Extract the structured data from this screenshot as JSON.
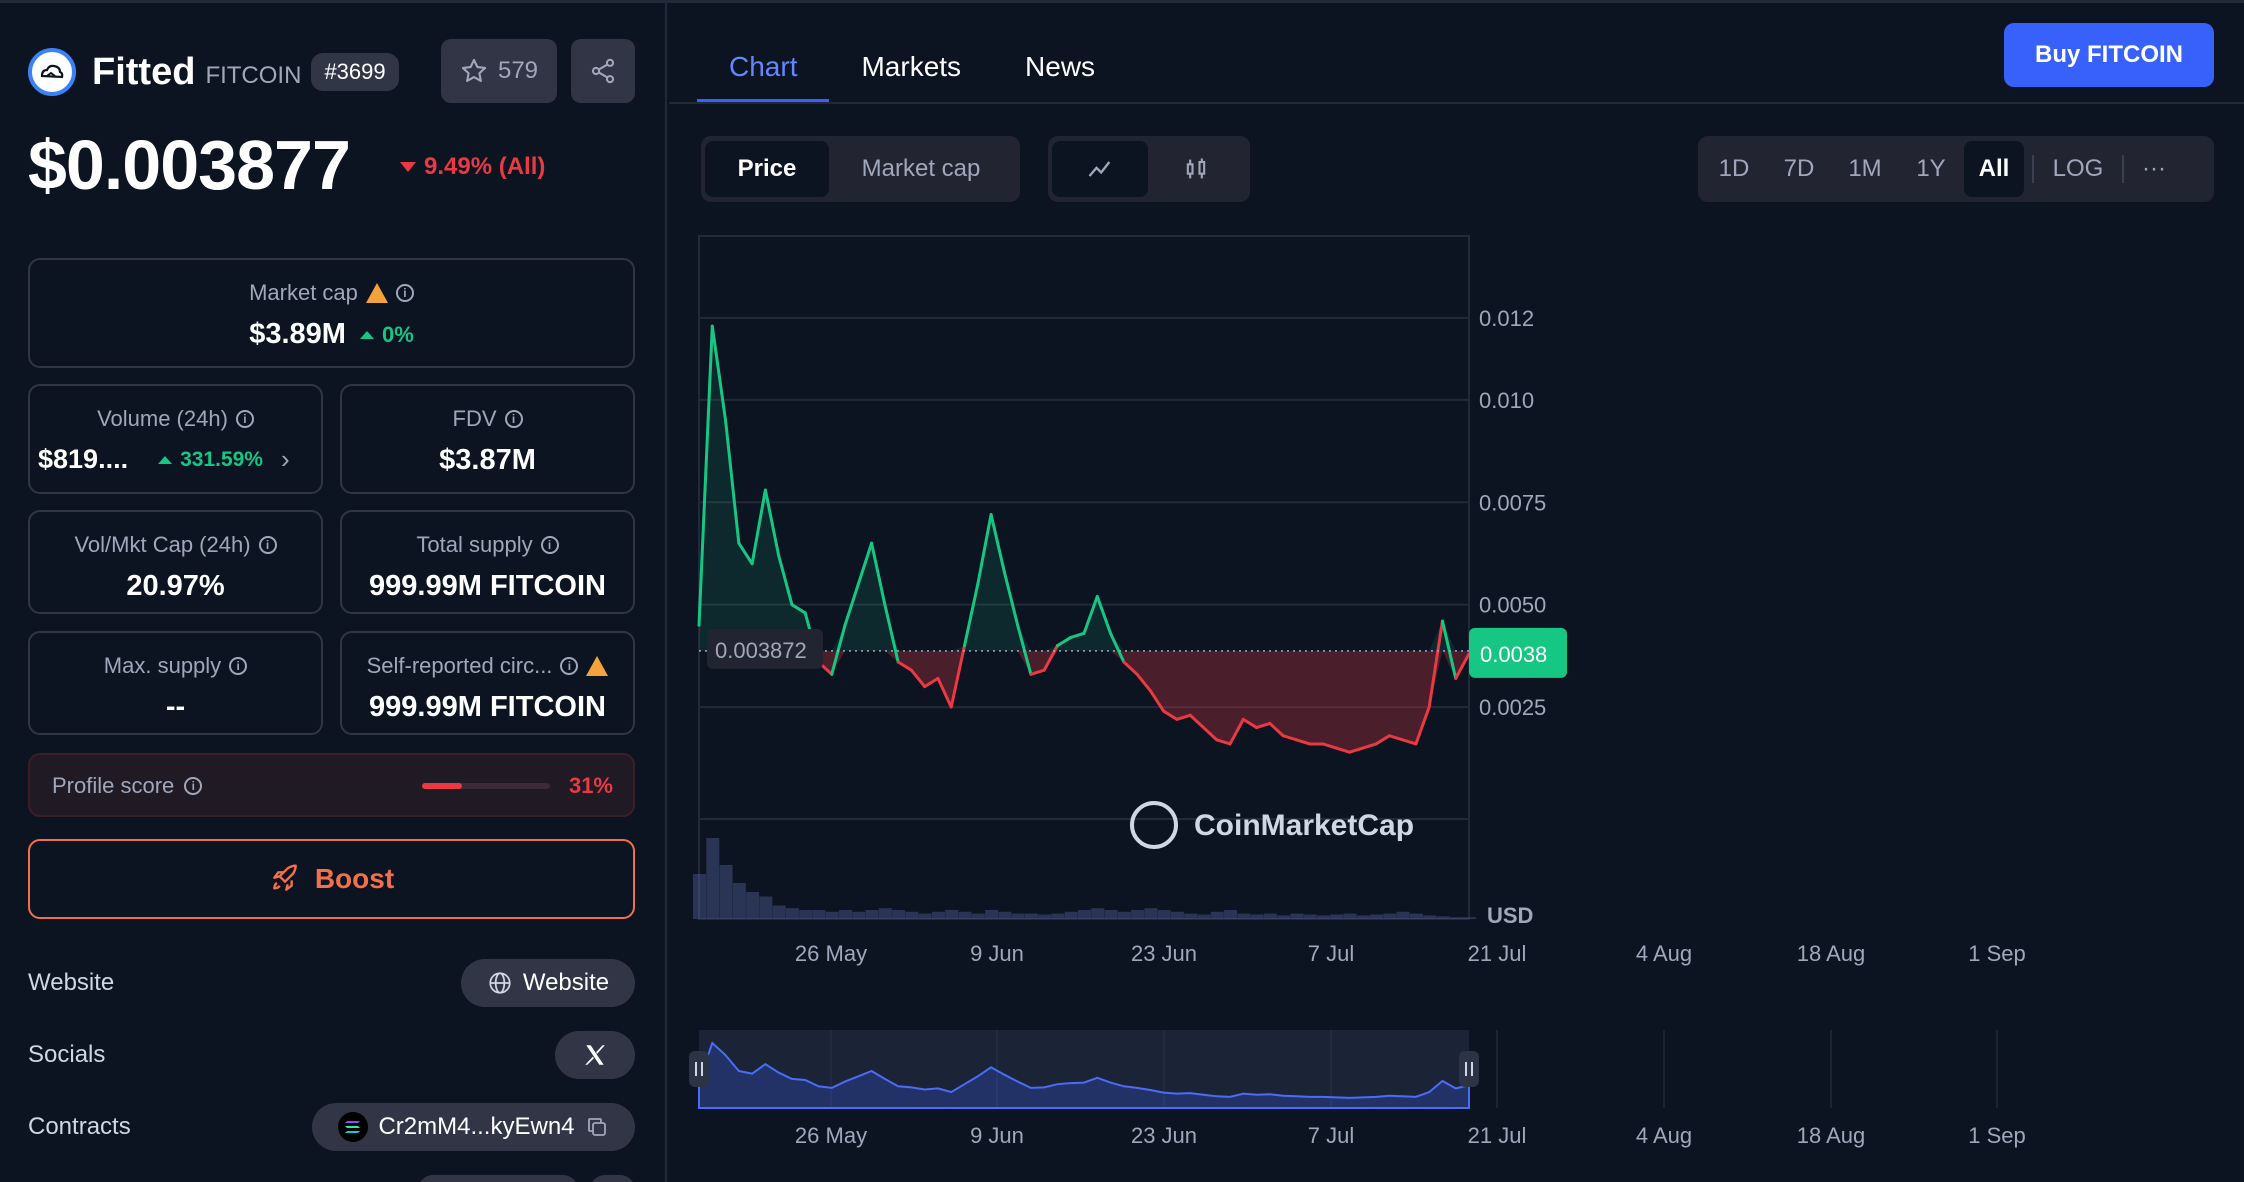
{
  "coin": {
    "name": "Fitted",
    "symbol": "FITCOIN",
    "rank": "#3699",
    "watchlist_count": "579"
  },
  "price": {
    "value": "$0.003877",
    "change": "9.49% (All)"
  },
  "stats": {
    "market_cap": {
      "label": "Market cap",
      "value": "$3.89M",
      "change": "0%"
    },
    "volume": {
      "label": "Volume (24h)",
      "value": "$819....",
      "change": "331.59%"
    },
    "fdv": {
      "label": "FDV",
      "value": "$3.87M"
    },
    "vol_mkt": {
      "label": "Vol/Mkt Cap (24h)",
      "value": "20.97%"
    },
    "total_supply": {
      "label": "Total supply",
      "value": "999.99M FITCOIN"
    },
    "max_supply": {
      "label": "Max. supply",
      "value": "--"
    },
    "circ_supply": {
      "label": "Self-reported circ...",
      "value": "999.99M FITCOIN"
    }
  },
  "profile_score": {
    "label": "Profile score",
    "value": "31%",
    "fraction": 0.31
  },
  "boost_label": "Boost",
  "links": {
    "website_label": "Website",
    "website_btn": "Website",
    "socials_label": "Socials",
    "contracts_label": "Contracts",
    "contract": "Cr2mM4...kyEwn4"
  },
  "tabs": [
    {
      "label": "Chart"
    },
    {
      "label": "Markets"
    },
    {
      "label": "News"
    }
  ],
  "buy_label": "Buy FITCOIN",
  "chart_controls": {
    "metric": [
      "Price",
      "Market cap"
    ],
    "ranges": [
      "1D",
      "7D",
      "1M",
      "1Y",
      "All"
    ],
    "log_label": "LOG",
    "more": "···"
  },
  "colors": {
    "up": "#16c784",
    "down": "#ea3943",
    "accent": "#3861fb",
    "bg": "#0d1421"
  },
  "watermark": "CoinMarketCap",
  "chart_data": {
    "type": "line",
    "y_unit": "USD",
    "baseline_label": "0.003872",
    "current_label": "0.0038",
    "baseline": 0.003872,
    "yticks": [
      "0.012",
      "0.010",
      "0.0075",
      "0.0050",
      "0.0025"
    ],
    "ytick_values": [
      0.012,
      0.01,
      0.0075,
      0.005,
      0.0025
    ],
    "xticks": [
      "26 May",
      "9 Jun",
      "23 Jun",
      "7 Jul",
      "21 Jul",
      "4 Aug",
      "18 Aug",
      "1 Sep"
    ],
    "x": [
      "2024-05-15",
      "2024-05-17",
      "2024-05-19",
      "2024-05-21",
      "2024-05-23",
      "2024-05-25",
      "2024-05-27",
      "2024-05-29",
      "2024-05-31",
      "2024-06-02",
      "2024-06-04",
      "2024-06-06",
      "2024-06-08",
      "2024-06-10",
      "2024-06-12",
      "2024-06-14",
      "2024-06-16",
      "2024-06-18",
      "2024-06-20",
      "2024-06-22",
      "2024-06-24",
      "2024-06-26",
      "2024-06-28",
      "2024-06-30",
      "2024-07-02",
      "2024-07-04",
      "2024-07-06",
      "2024-07-08",
      "2024-07-10",
      "2024-07-12",
      "2024-07-14",
      "2024-07-16",
      "2024-07-18",
      "2024-07-20",
      "2024-07-22",
      "2024-07-24",
      "2024-07-26",
      "2024-07-28",
      "2024-07-30",
      "2024-08-01",
      "2024-08-03",
      "2024-08-05",
      "2024-08-07",
      "2024-08-09",
      "2024-08-11",
      "2024-08-13",
      "2024-08-15",
      "2024-08-17",
      "2024-08-19",
      "2024-08-21",
      "2024-08-23",
      "2024-08-25",
      "2024-08-27",
      "2024-08-29",
      "2024-08-31",
      "2024-09-02",
      "2024-09-04",
      "2024-09-06",
      "2024-09-08"
    ],
    "price": [
      0.0045,
      0.0118,
      0.0095,
      0.0065,
      0.006,
      0.0078,
      0.0062,
      0.005,
      0.0048,
      0.0036,
      0.0033,
      0.0045,
      0.0055,
      0.0065,
      0.005,
      0.0036,
      0.0034,
      0.003,
      0.0032,
      0.0025,
      0.004,
      0.0055,
      0.0072,
      0.0058,
      0.0045,
      0.0033,
      0.0034,
      0.004,
      0.0042,
      0.0043,
      0.0052,
      0.0043,
      0.0036,
      0.0033,
      0.0029,
      0.0024,
      0.0022,
      0.0023,
      0.002,
      0.0017,
      0.0016,
      0.0022,
      0.002,
      0.0021,
      0.0018,
      0.0017,
      0.0016,
      0.0016,
      0.0015,
      0.0014,
      0.0015,
      0.0016,
      0.0018,
      0.0017,
      0.0016,
      0.0025,
      0.0046,
      0.0032,
      0.0038
    ],
    "volume": [
      0.5,
      0.9,
      0.6,
      0.4,
      0.3,
      0.25,
      0.15,
      0.12,
      0.1,
      0.1,
      0.08,
      0.1,
      0.08,
      0.1,
      0.12,
      0.1,
      0.08,
      0.06,
      0.08,
      0.1,
      0.08,
      0.06,
      0.1,
      0.08,
      0.06,
      0.06,
      0.05,
      0.06,
      0.08,
      0.1,
      0.12,
      0.1,
      0.08,
      0.1,
      0.12,
      0.1,
      0.08,
      0.06,
      0.05,
      0.08,
      0.1,
      0.06,
      0.05,
      0.06,
      0.04,
      0.06,
      0.05,
      0.04,
      0.05,
      0.06,
      0.04,
      0.05,
      0.06,
      0.08,
      0.06,
      0.04,
      0.03,
      0.02,
      0.02
    ]
  }
}
